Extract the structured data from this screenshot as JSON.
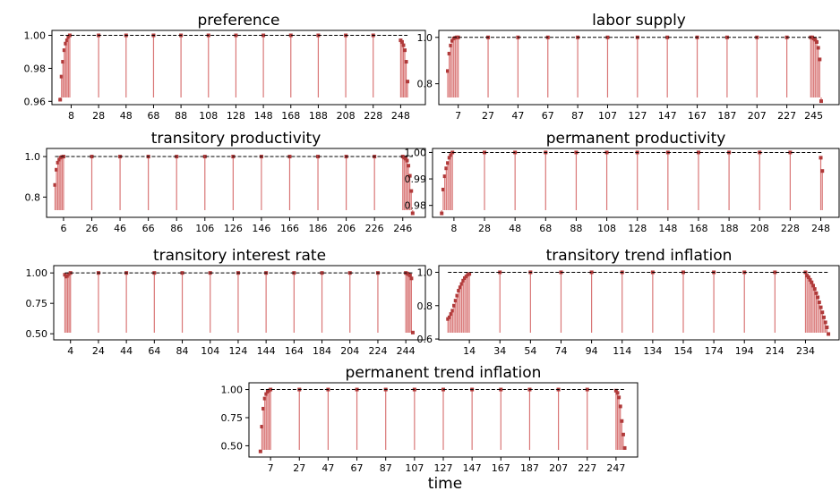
{
  "figure": {
    "xlabel": "time"
  },
  "chart_data": [
    {
      "type": "bar",
      "title": "preference",
      "reference_line": 1.0,
      "ylim": [
        0.958,
        1.003
      ],
      "yticks": [
        0.96,
        0.98,
        1.0
      ],
      "ytick_labels": [
        "0.96",
        "0.98",
        "1.00"
      ],
      "xlim": [
        -6,
        266
      ],
      "xticks": [
        8,
        28,
        48,
        68,
        88,
        108,
        128,
        148,
        168,
        188,
        208,
        228,
        248
      ],
      "x": [
        0,
        1,
        2,
        3,
        4,
        5,
        6,
        7,
        28,
        48,
        68,
        88,
        108,
        128,
        148,
        168,
        188,
        208,
        228,
        248,
        249,
        250,
        251,
        252,
        253
      ],
      "values": [
        0.961,
        0.975,
        0.984,
        0.991,
        0.995,
        0.997,
        0.999,
        1.0,
        1.0,
        1.0,
        1.0,
        1.0,
        1.0,
        1.0,
        1.0,
        1.0,
        1.0,
        1.0,
        1.0,
        0.997,
        0.996,
        0.994,
        0.991,
        0.984,
        0.972
      ]
    },
    {
      "type": "bar",
      "title": "labor supply",
      "reference_line": 1.0,
      "ylim": [
        0.71,
        1.03
      ],
      "yticks": [
        0.8,
        1.0
      ],
      "ytick_labels": [
        "0.8",
        "1.0"
      ],
      "xlim": [
        -6,
        262
      ],
      "xticks": [
        7,
        27,
        47,
        67,
        87,
        107,
        127,
        147,
        167,
        187,
        207,
        227,
        245
      ],
      "x": [
        0,
        1,
        2,
        3,
        4,
        5,
        6,
        7,
        27,
        47,
        67,
        87,
        107,
        127,
        147,
        167,
        187,
        207,
        227,
        243,
        244,
        245,
        246,
        247,
        248,
        249,
        250
      ],
      "values": [
        0.855,
        0.93,
        0.965,
        0.985,
        0.995,
        0.998,
        1.0,
        1.0,
        1.0,
        1.0,
        1.0,
        1.0,
        1.0,
        1.0,
        1.0,
        1.0,
        1.0,
        1.0,
        1.0,
        1.0,
        1.0,
        0.995,
        0.99,
        0.98,
        0.955,
        0.905,
        0.725
      ]
    },
    {
      "type": "bar",
      "title": "transitory productivity",
      "reference_line": 1.0,
      "ylim": [
        0.7,
        1.04
      ],
      "yticks": [
        0.8,
        1.0
      ],
      "ytick_labels": [
        "0.8",
        "1.0"
      ],
      "xlim": [
        -6,
        262
      ],
      "xticks": [
        6,
        26,
        46,
        66,
        86,
        106,
        126,
        146,
        166,
        186,
        206,
        226,
        246
      ],
      "x": [
        0,
        1,
        2,
        3,
        4,
        5,
        6,
        26,
        46,
        66,
        86,
        106,
        126,
        146,
        166,
        186,
        206,
        226,
        246,
        247,
        248,
        249,
        250,
        251,
        252,
        253
      ],
      "values": [
        0.86,
        0.935,
        0.97,
        0.985,
        0.995,
        0.998,
        1.0,
        1.0,
        1.0,
        1.0,
        1.0,
        1.0,
        1.0,
        1.0,
        1.0,
        1.0,
        1.0,
        1.0,
        1.0,
        0.995,
        0.99,
        0.98,
        0.955,
        0.905,
        0.83,
        0.72
      ]
    },
    {
      "type": "bar",
      "title": "permanent productivity",
      "reference_line": 1.0,
      "ylim": [
        0.9755,
        1.0015
      ],
      "yticks": [
        0.98,
        0.99,
        1.0
      ],
      "ytick_labels": [
        "0.98",
        "0.99",
        "1.00"
      ],
      "xlim": [
        -6,
        260
      ],
      "xticks": [
        8,
        28,
        48,
        68,
        88,
        108,
        128,
        148,
        168,
        188,
        208,
        228,
        248
      ],
      "x": [
        0,
        1,
        2,
        3,
        4,
        5,
        6,
        7,
        28,
        48,
        68,
        88,
        108,
        128,
        148,
        168,
        188,
        208,
        228,
        248,
        249
      ],
      "values": [
        0.977,
        0.986,
        0.991,
        0.994,
        0.996,
        0.998,
        0.999,
        1.0,
        1.0,
        1.0,
        1.0,
        1.0,
        1.0,
        1.0,
        1.0,
        1.0,
        1.0,
        1.0,
        1.0,
        0.998,
        0.993
      ]
    },
    {
      "type": "bar",
      "title": "transitory interest rate",
      "reference_line": 1.0,
      "ylim": [
        0.45,
        1.06
      ],
      "yticks": [
        0.5,
        0.75,
        1.0
      ],
      "ytick_labels": [
        "0.50",
        "0.75",
        "1.00"
      ],
      "xlim": [
        -8,
        258
      ],
      "xticks": [
        4,
        24,
        44,
        64,
        84,
        104,
        124,
        144,
        164,
        184,
        204,
        224,
        244
      ],
      "x": [
        0,
        1,
        2,
        3,
        4,
        24,
        44,
        64,
        84,
        104,
        124,
        144,
        164,
        184,
        204,
        224,
        244,
        245,
        246,
        247,
        248,
        249
      ],
      "values": [
        0.985,
        0.97,
        0.975,
        0.99,
        1.0,
        1.0,
        1.0,
        1.0,
        1.0,
        1.0,
        1.0,
        1.0,
        1.0,
        1.0,
        1.0,
        1.0,
        1.0,
        0.995,
        0.99,
        0.98,
        0.955,
        0.51
      ]
    },
    {
      "type": "bar",
      "title": "transitory trend inflation",
      "reference_line": 1.0,
      "ylim": [
        0.595,
        1.04
      ],
      "yticks": [
        0.6,
        0.8,
        1.0
      ],
      "ytick_labels": [
        "0.6",
        "0.8",
        "1.0"
      ],
      "xlim": [
        -6,
        256
      ],
      "xticks": [
        14,
        34,
        54,
        74,
        94,
        114,
        134,
        154,
        174,
        194,
        214,
        234
      ],
      "x": [
        0,
        1,
        2,
        3,
        4,
        5,
        6,
        7,
        8,
        9,
        10,
        11,
        12,
        13,
        14,
        34,
        54,
        74,
        94,
        114,
        134,
        154,
        174,
        194,
        214,
        234,
        235,
        236,
        237,
        238,
        239,
        240,
        241,
        242,
        243,
        244,
        245,
        246,
        247,
        248,
        249
      ],
      "values": [
        0.72,
        0.73,
        0.75,
        0.77,
        0.8,
        0.83,
        0.86,
        0.89,
        0.91,
        0.93,
        0.95,
        0.965,
        0.975,
        0.985,
        0.99,
        1.0,
        1.0,
        1.0,
        1.0,
        1.0,
        1.0,
        1.0,
        1.0,
        1.0,
        1.0,
        1.0,
        0.98,
        0.97,
        0.955,
        0.94,
        0.92,
        0.9,
        0.875,
        0.85,
        0.82,
        0.79,
        0.76,
        0.73,
        0.7,
        0.67,
        0.63
      ]
    },
    {
      "type": "bar",
      "title": "permanent trend inflation",
      "reference_line": 1.0,
      "ylim": [
        0.4,
        1.06
      ],
      "yticks": [
        0.5,
        0.75,
        1.0
      ],
      "ytick_labels": [
        "0.50",
        "0.75",
        "1.00"
      ],
      "xlim": [
        -8,
        262
      ],
      "xticks": [
        7,
        27,
        47,
        67,
        87,
        107,
        127,
        147,
        167,
        187,
        207,
        227,
        247
      ],
      "x": [
        0,
        1,
        2,
        3,
        4,
        5,
        6,
        7,
        27,
        47,
        67,
        87,
        107,
        127,
        147,
        167,
        187,
        207,
        227,
        247,
        248,
        249,
        250,
        251,
        252,
        253
      ],
      "values": [
        0.45,
        0.67,
        0.83,
        0.92,
        0.96,
        0.98,
        0.99,
        1.0,
        1.0,
        1.0,
        1.0,
        1.0,
        1.0,
        1.0,
        1.0,
        1.0,
        1.0,
        1.0,
        1.0,
        0.99,
        0.97,
        0.93,
        0.85,
        0.72,
        0.6,
        0.48
      ]
    }
  ],
  "colors": {
    "bar": "#d97777",
    "marker": "#b03a3a",
    "reference_line": "#000000",
    "axes": "#000000"
  }
}
